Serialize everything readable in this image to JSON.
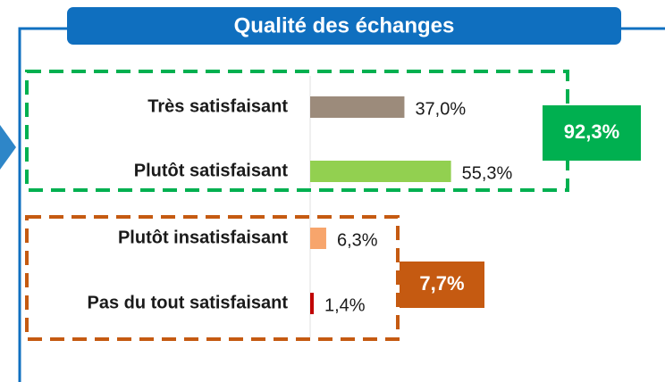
{
  "chart_data": {
    "type": "bar",
    "orientation": "horizontal",
    "title": "Qualité des échanges",
    "categories": [
      "Très satisfaisant",
      "Plutôt satisfaisant",
      "Plutôt insatisfaisant",
      "Pas du tout satisfaisant"
    ],
    "values": [
      37.0,
      55.3,
      6.3,
      1.4
    ],
    "value_labels": [
      "37,0%",
      "55,3%",
      "6,3%",
      "1,4%"
    ],
    "colors": [
      "#9c8b7b",
      "#92d050",
      "#f7a56c",
      "#c00000"
    ],
    "group_totals": [
      92.3,
      7.7
    ],
    "group_total_labels": [
      "92,3%",
      "7,7%"
    ],
    "group_colors": [
      "#00b050",
      "#c55a11"
    ]
  }
}
